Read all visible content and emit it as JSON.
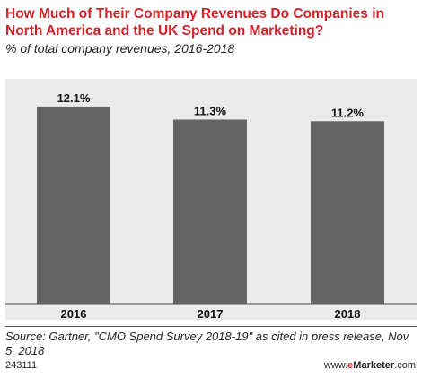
{
  "chart_data": {
    "type": "bar",
    "title": "How Much of Their Company Revenues Do Companies in North America and the UK Spend on Marketing?",
    "subtitle": "% of total company revenues, 2016-2018",
    "categories": [
      "2016",
      "2017",
      "2018"
    ],
    "values": [
      12.1,
      11.3,
      11.2
    ],
    "value_labels": [
      "12.1%",
      "11.3%",
      "11.2%"
    ],
    "ylim": [
      0,
      13.8
    ],
    "grid": false,
    "bar_color": "#646464"
  },
  "footer": {
    "source": "Source: Gartner, \"CMO Spend Survey 2018-19\" as cited in press release, Nov 5, 2018",
    "code": "243111",
    "brand_prefix": "www.",
    "brand_e": "e",
    "brand_main": "Marketer",
    "brand_suffix": ".com"
  }
}
